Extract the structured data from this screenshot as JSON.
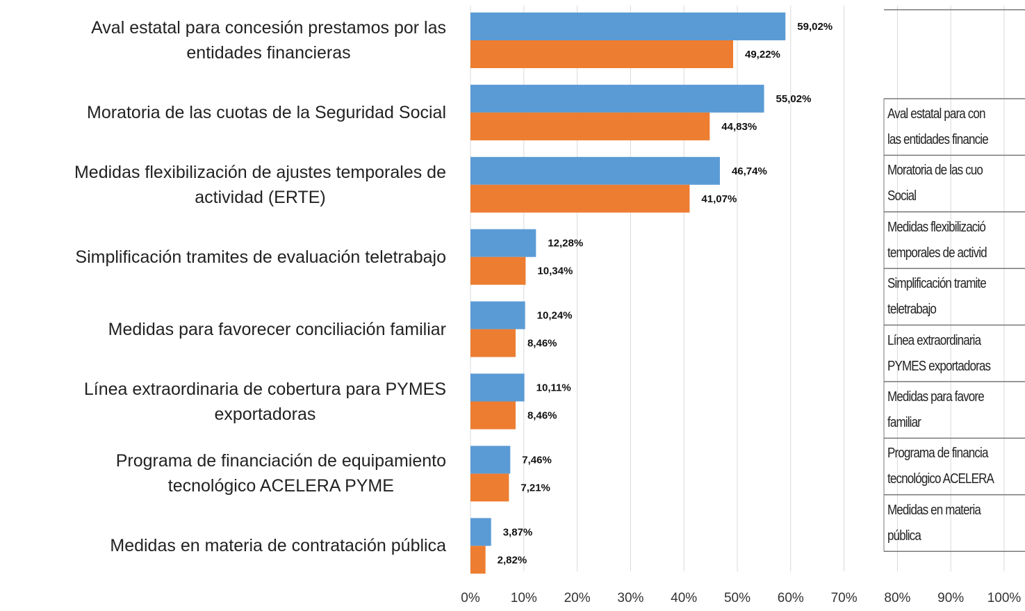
{
  "chart_data": {
    "type": "bar",
    "orientation": "horizontal",
    "categories": [
      "Aval estatal para concesión prestamos por las\nentidades financieras",
      "Moratoria de las cuotas de la Seguridad Social",
      "Medidas flexibilización de ajustes temporales de\nactividad (ERTE)",
      "Simplificación tramites de evaluación teletrabajo",
      "Medidas para favorecer conciliación familiar",
      "Línea extraordinaria de cobertura para PYMES\nexportadoras",
      "Programa de financiación de equipamiento\ntecnológico ACELERA PYME",
      "Medidas en materia de contratación pública"
    ],
    "series": [
      {
        "color": "#5b9bd5",
        "values": [
          59.02,
          55.02,
          46.74,
          12.28,
          10.24,
          10.11,
          7.46,
          3.87
        ],
        "value_labels": [
          "59,02%",
          "55,02%",
          "46,74%",
          "12,28%",
          "10,24%",
          "10,11%",
          "7,46%",
          "3,87%"
        ]
      },
      {
        "color": "#ed7d31",
        "values": [
          49.22,
          44.83,
          41.07,
          10.34,
          8.46,
          8.46,
          7.21,
          2.82
        ],
        "value_labels": [
          "49,22%",
          "44,83%",
          "41,07%",
          "10,34%",
          "8,46%",
          "8,46%",
          "7,21%",
          "2,82%"
        ]
      }
    ],
    "xlim": [
      0,
      100
    ],
    "xticks": [
      {
        "value": 0,
        "label": "0%"
      },
      {
        "value": 10,
        "label": "10%"
      },
      {
        "value": 20,
        "label": "20%"
      },
      {
        "value": 30,
        "label": "30%"
      },
      {
        "value": 40,
        "label": "40%"
      },
      {
        "value": 50,
        "label": "50%"
      },
      {
        "value": 60,
        "label": "60%"
      },
      {
        "value": 70,
        "label": "70%"
      },
      {
        "value": 80,
        "label": "80%"
      },
      {
        "value": 90,
        "label": "90%"
      },
      {
        "value": 100,
        "label": "100%"
      }
    ],
    "grid": true
  },
  "table": {
    "rows": [
      "Aval estatal para con\nlas entidades financie",
      "Moratoria de las cuo\nSocial",
      "Medidas flexibilizació\ntemporales de activid",
      "Simplificación tramite\nteletrabajo",
      "Línea extraordinaria \nPYMES exportadoras",
      "Medidas para favore\nfamiliar",
      "Programa de financia\ntecnológico ACELERA",
      "Medidas en materia \npública"
    ]
  }
}
